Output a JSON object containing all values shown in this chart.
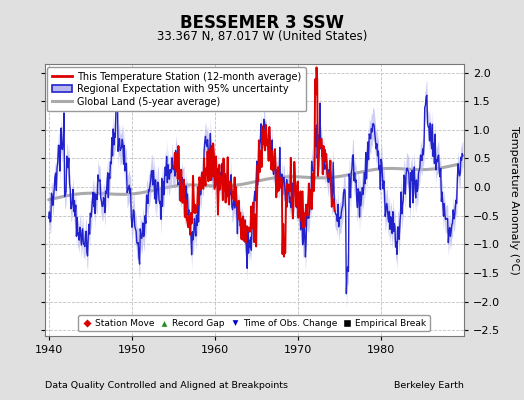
{
  "title": "BESSEMER 3 SSW",
  "subtitle": "33.367 N, 87.017 W (United States)",
  "ylabel": "Temperature Anomaly (°C)",
  "footer_left": "Data Quality Controlled and Aligned at Breakpoints",
  "footer_right": "Berkeley Earth",
  "xlim": [
    1939.5,
    1990.0
  ],
  "ylim": [
    -2.6,
    2.15
  ],
  "yticks": [
    -2.5,
    -2,
    -1.5,
    -1,
    -0.5,
    0,
    0.5,
    1,
    1.5,
    2
  ],
  "xticks": [
    1940,
    1950,
    1960,
    1970,
    1980
  ],
  "background_color": "#e0e0e0",
  "plot_bg_color": "#ffffff",
  "grid_color": "#c0c0c0",
  "legend_entries": [
    {
      "label": "This Temperature Station (12-month average)",
      "color": "#dd0000",
      "lw": 2.0
    },
    {
      "label": "Regional Expectation with 95% uncertainty",
      "color": "#2222cc",
      "band_color": "#aaaaee"
    },
    {
      "label": "Global Land (5-year average)",
      "color": "#aaaaaa",
      "lw": 2.5
    }
  ],
  "marker_legend": [
    {
      "label": "Station Move",
      "color": "#dd0000",
      "marker": "D"
    },
    {
      "label": "Record Gap",
      "color": "#228B22",
      "marker": "^"
    },
    {
      "label": "Time of Obs. Change",
      "color": "#0000cc",
      "marker": "v"
    },
    {
      "label": "Empirical Break",
      "color": "#000000",
      "marker": "s"
    }
  ]
}
